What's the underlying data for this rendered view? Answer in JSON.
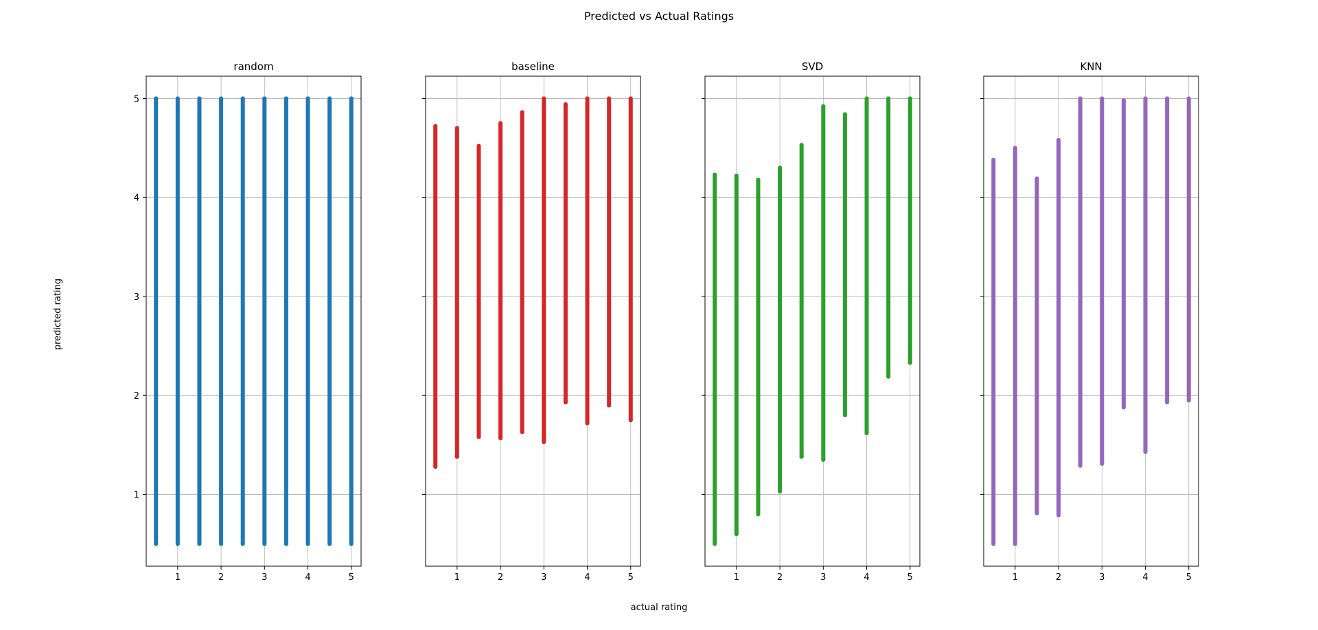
{
  "figure": {
    "title": "Predicted vs Actual Ratings",
    "xlabel": "actual rating",
    "ylabel": "predicted rating"
  },
  "chart_data": [
    {
      "type": "scatter",
      "title": "random",
      "color": "#1f77b4",
      "xlim": [
        0.275,
        5.225
      ],
      "ylim": [
        0.275,
        5.225
      ],
      "xticks": [
        1,
        2,
        3,
        4,
        5
      ],
      "yticks": [
        1,
        2,
        3,
        4,
        5
      ],
      "grid": true,
      "series": [
        {
          "values": [
            {
              "x": 0.5,
              "y": [
                0.5,
                5.0
              ]
            },
            {
              "x": 1.0,
              "y": [
                0.5,
                5.0
              ]
            },
            {
              "x": 1.5,
              "y": [
                0.5,
                5.0
              ]
            },
            {
              "x": 2.0,
              "y": [
                0.5,
                5.0
              ]
            },
            {
              "x": 2.5,
              "y": [
                0.5,
                5.0
              ]
            },
            {
              "x": 3.0,
              "y": [
                0.5,
                5.0
              ]
            },
            {
              "x": 3.5,
              "y": [
                0.5,
                5.0
              ]
            },
            {
              "x": 4.0,
              "y": [
                0.5,
                5.0
              ]
            },
            {
              "x": 4.5,
              "y": [
                0.5,
                5.0
              ]
            },
            {
              "x": 5.0,
              "y": [
                0.5,
                5.0
              ]
            }
          ]
        }
      ]
    },
    {
      "type": "scatter",
      "title": "baseline",
      "color": "#d62728",
      "xlim": [
        0.275,
        5.225
      ],
      "ylim": [
        0.275,
        5.225
      ],
      "xticks": [
        1,
        2,
        3,
        4,
        5
      ],
      "yticks": [
        1,
        2,
        3,
        4,
        5
      ],
      "grid": true,
      "series": [
        {
          "values": [
            {
              "x": 0.5,
              "y": [
                1.28,
                4.72
              ]
            },
            {
              "x": 1.0,
              "y": [
                1.38,
                4.7
              ]
            },
            {
              "x": 1.5,
              "y": [
                1.58,
                4.52
              ]
            },
            {
              "x": 2.0,
              "y": [
                1.57,
                4.75
              ]
            },
            {
              "x": 2.5,
              "y": [
                1.63,
                4.86
              ]
            },
            {
              "x": 3.0,
              "y": [
                1.53,
                5.0
              ]
            },
            {
              "x": 3.5,
              "y": [
                1.93,
                4.94
              ]
            },
            {
              "x": 4.0,
              "y": [
                1.72,
                5.0
              ]
            },
            {
              "x": 4.5,
              "y": [
                1.9,
                5.0
              ]
            },
            {
              "x": 5.0,
              "y": [
                1.75,
                5.0
              ]
            }
          ]
        }
      ]
    },
    {
      "type": "scatter",
      "title": "SVD",
      "color": "#2ca02c",
      "xlim": [
        0.275,
        5.225
      ],
      "ylim": [
        0.275,
        5.225
      ],
      "xticks": [
        1,
        2,
        3,
        4,
        5
      ],
      "yticks": [
        1,
        2,
        3,
        4,
        5
      ],
      "grid": true,
      "series": [
        {
          "values": [
            {
              "x": 0.5,
              "y": [
                0.5,
                4.23
              ]
            },
            {
              "x": 1.0,
              "y": [
                0.6,
                4.22
              ]
            },
            {
              "x": 1.5,
              "y": [
                0.8,
                4.18
              ]
            },
            {
              "x": 2.0,
              "y": [
                1.03,
                4.3
              ]
            },
            {
              "x": 2.5,
              "y": [
                1.38,
                4.53
              ]
            },
            {
              "x": 3.0,
              "y": [
                1.35,
                4.92
              ]
            },
            {
              "x": 3.5,
              "y": [
                1.8,
                4.84
              ]
            },
            {
              "x": 4.0,
              "y": [
                1.62,
                5.0
              ]
            },
            {
              "x": 4.5,
              "y": [
                2.19,
                5.0
              ]
            },
            {
              "x": 5.0,
              "y": [
                2.33,
                5.0
              ]
            }
          ]
        }
      ]
    },
    {
      "type": "scatter",
      "title": "KNN",
      "color": "#9467bd",
      "xlim": [
        0.275,
        5.225
      ],
      "ylim": [
        0.275,
        5.225
      ],
      "xticks": [
        1,
        2,
        3,
        4,
        5
      ],
      "yticks": [
        1,
        2,
        3,
        4,
        5
      ],
      "grid": true,
      "series": [
        {
          "values": [
            {
              "x": 0.5,
              "y": [
                0.5,
                4.38
              ]
            },
            {
              "x": 1.0,
              "y": [
                0.5,
                4.5
              ]
            },
            {
              "x": 1.5,
              "y": [
                0.81,
                4.19
              ]
            },
            {
              "x": 2.0,
              "y": [
                0.79,
                4.58
              ]
            },
            {
              "x": 2.5,
              "y": [
                1.29,
                5.0
              ]
            },
            {
              "x": 3.0,
              "y": [
                1.31,
                5.0
              ]
            },
            {
              "x": 3.5,
              "y": [
                1.88,
                4.98
              ]
            },
            {
              "x": 4.0,
              "y": [
                1.43,
                5.0
              ]
            },
            {
              "x": 4.5,
              "y": [
                1.93,
                5.0
              ]
            },
            {
              "x": 5.0,
              "y": [
                1.95,
                5.0
              ]
            }
          ]
        }
      ]
    }
  ]
}
